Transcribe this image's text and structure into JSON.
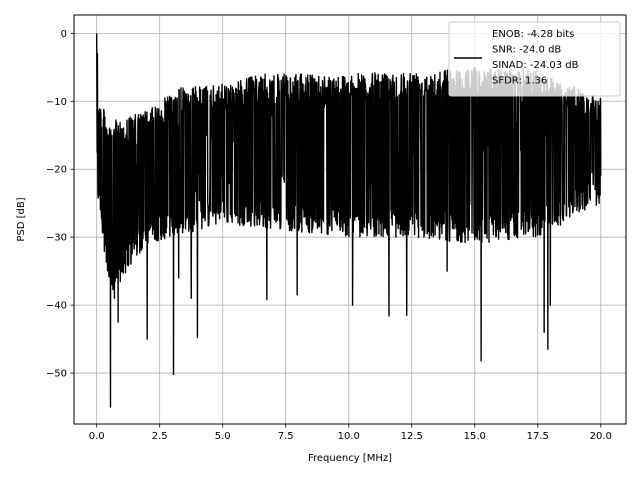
{
  "chart_data": {
    "type": "line",
    "xlabel": "Frequency [MHz]",
    "ylabel": "PSD [dB]",
    "xlim": [
      -0.9,
      21.0
    ],
    "ylim": [
      -57.5,
      2.7
    ],
    "xticks": [
      0.0,
      2.5,
      5.0,
      7.5,
      10.0,
      12.5,
      15.0,
      17.5,
      20.0
    ],
    "xtick_labels": [
      "0.0",
      "2.5",
      "5.0",
      "7.5",
      "10.0",
      "12.5",
      "15.0",
      "17.5",
      "20.0"
    ],
    "yticks": [
      0,
      -10,
      -20,
      -30,
      -40,
      -50
    ],
    "ytick_labels": [
      "0",
      "−10",
      "−20",
      "−30",
      "−40",
      "−50"
    ],
    "grid": true,
    "legend": {
      "placement": "top-right",
      "lines": [
        "ENOB: -4.28 bits",
        "SNR: -24.0 dB",
        "SINAD: -24.03 dB",
        "SFDR: 1.36"
      ]
    },
    "series": [
      {
        "color": "#000000",
        "x_range": [
          0.0,
          20.0
        ],
        "n_points": 2048,
        "x_unit": "MHz",
        "y_unit": "dB",
        "peak": {
          "x": 0.0,
          "y": 0.0
        },
        "envelope_upper": [
          [
            0.0,
            0.0
          ],
          [
            0.1,
            -9.5
          ],
          [
            0.5,
            -13.0
          ],
          [
            1.5,
            -12.0
          ],
          [
            2.5,
            -10.5
          ],
          [
            3.0,
            -8.0
          ],
          [
            5.0,
            -7.5
          ],
          [
            6.5,
            -6.0
          ],
          [
            10.0,
            -6.0
          ],
          [
            15.0,
            -5.0
          ],
          [
            17.5,
            -5.5
          ],
          [
            20.0,
            -9.5
          ]
        ],
        "envelope_lower": [
          [
            0.1,
            -25.0
          ],
          [
            0.5,
            -39.0
          ],
          [
            2.0,
            -31.0
          ],
          [
            5.0,
            -28.0
          ],
          [
            7.5,
            -29.0
          ],
          [
            10.0,
            -30.0
          ],
          [
            12.5,
            -30.0
          ],
          [
            15.0,
            -31.0
          ],
          [
            17.5,
            -30.0
          ],
          [
            20.0,
            -25.0
          ]
        ],
        "typical_floor": -27.0,
        "dips": [
          {
            "x": 0.55,
            "y": -55.0
          },
          {
            "x": 0.6,
            "y": -37.0
          },
          {
            "x": 0.7,
            "y": -39.0
          },
          {
            "x": 0.85,
            "y": -42.5
          },
          {
            "x": 2.0,
            "y": -45.0
          },
          {
            "x": 3.05,
            "y": -50.2
          },
          {
            "x": 3.25,
            "y": -36.0
          },
          {
            "x": 3.75,
            "y": -39.0
          },
          {
            "x": 4.0,
            "y": -44.8
          },
          {
            "x": 6.75,
            "y": -39.2
          },
          {
            "x": 7.95,
            "y": -38.5
          },
          {
            "x": 10.15,
            "y": -40.0
          },
          {
            "x": 11.6,
            "y": -41.6
          },
          {
            "x": 12.3,
            "y": -41.5
          },
          {
            "x": 13.9,
            "y": -35.0
          },
          {
            "x": 15.25,
            "y": -48.2
          },
          {
            "x": 17.75,
            "y": -44.0
          },
          {
            "x": 17.9,
            "y": -46.5
          },
          {
            "x": 18.0,
            "y": -40.0
          }
        ]
      }
    ]
  }
}
